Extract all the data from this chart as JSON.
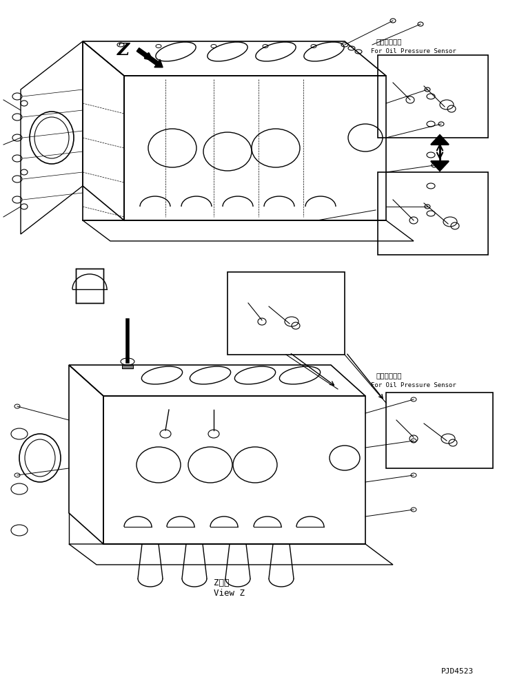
{
  "title": "",
  "background_color": "#ffffff",
  "line_color": "#000000",
  "fig_width": 7.34,
  "fig_height": 9.86,
  "dpi": 100,
  "japanese_text_1": "油圧センサ用",
  "english_text_1": "For Oil Pressure Sensor",
  "japanese_text_2": "油圧センサ用",
  "english_text_2": "For Oil Pressure Sensor",
  "view_z_ja": "Z　視",
  "view_z_en": "View Z",
  "part_number": "PJD4523",
  "view_label": "Z"
}
